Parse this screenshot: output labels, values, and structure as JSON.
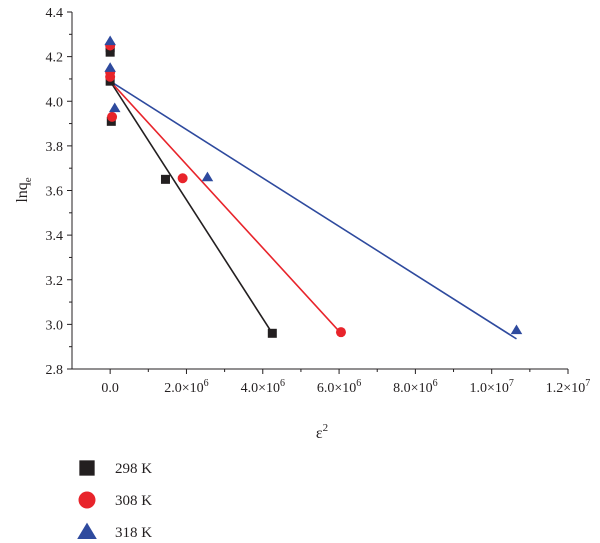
{
  "chart_data": {
    "type": "scatter",
    "xlabel": "ε",
    "xlabel_sup": "2",
    "ylabel": "lnq",
    "ylabel_sub": "e",
    "xlim": [
      -1000000,
      12000000
    ],
    "ylim": [
      2.8,
      4.4
    ],
    "x_ticks": [
      {
        "value": 0,
        "mant": "0.0",
        "exp": ""
      },
      {
        "value": 2000000,
        "mant": "2.0×10",
        "exp": "6"
      },
      {
        "value": 4000000,
        "mant": "4.0×10",
        "exp": "6"
      },
      {
        "value": 6000000,
        "mant": "6.0×10",
        "exp": "6"
      },
      {
        "value": 8000000,
        "mant": "8.0×10",
        "exp": "6"
      },
      {
        "value": 10000000,
        "mant": "1.0×10",
        "exp": "7"
      },
      {
        "value": 12000000,
        "mant": "1.2×10",
        "exp": "7"
      }
    ],
    "y_ticks": [
      {
        "value": 2.8,
        "label": "2.8"
      },
      {
        "value": 3.0,
        "label": "3.0"
      },
      {
        "value": 3.2,
        "label": "3.2"
      },
      {
        "value": 3.4,
        "label": "3.4"
      },
      {
        "value": 3.6,
        "label": "3.6"
      },
      {
        "value": 3.8,
        "label": "3.8"
      },
      {
        "value": 4.0,
        "label": "4.0"
      },
      {
        "value": 4.2,
        "label": "4.2"
      },
      {
        "value": 4.4,
        "label": "4.4"
      }
    ],
    "legend_position": "bottom-left, below plot",
    "series": [
      {
        "name": "298 K",
        "color": "#231f20",
        "marker": "square",
        "points": [
          [
            0,
            4.24
          ],
          [
            0,
            4.22
          ],
          [
            0,
            4.09
          ],
          [
            30000,
            3.91
          ],
          [
            1450000,
            3.65
          ],
          [
            4250000,
            2.96
          ]
        ],
        "fit": [
          [
            0,
            4.09
          ],
          [
            4250000,
            2.96
          ]
        ]
      },
      {
        "name": "308 K",
        "color": "#e8242b",
        "marker": "circle",
        "points": [
          [
            0,
            4.25
          ],
          [
            0,
            4.13
          ],
          [
            0,
            4.11
          ],
          [
            50000,
            3.93
          ],
          [
            1900000,
            3.655
          ],
          [
            6050000,
            2.965
          ]
        ],
        "fit": [
          [
            0,
            4.09
          ],
          [
            6050000,
            2.96
          ]
        ]
      },
      {
        "name": "318 K",
        "color": "#2e4a9e",
        "marker": "triangle",
        "points": [
          [
            0,
            4.27
          ],
          [
            0,
            4.15
          ],
          [
            120000,
            3.97
          ],
          [
            2550000,
            3.66
          ],
          [
            10650000,
            2.975
          ]
        ],
        "fit": [
          [
            0,
            4.09
          ],
          [
            10650000,
            2.935
          ]
        ]
      }
    ]
  }
}
